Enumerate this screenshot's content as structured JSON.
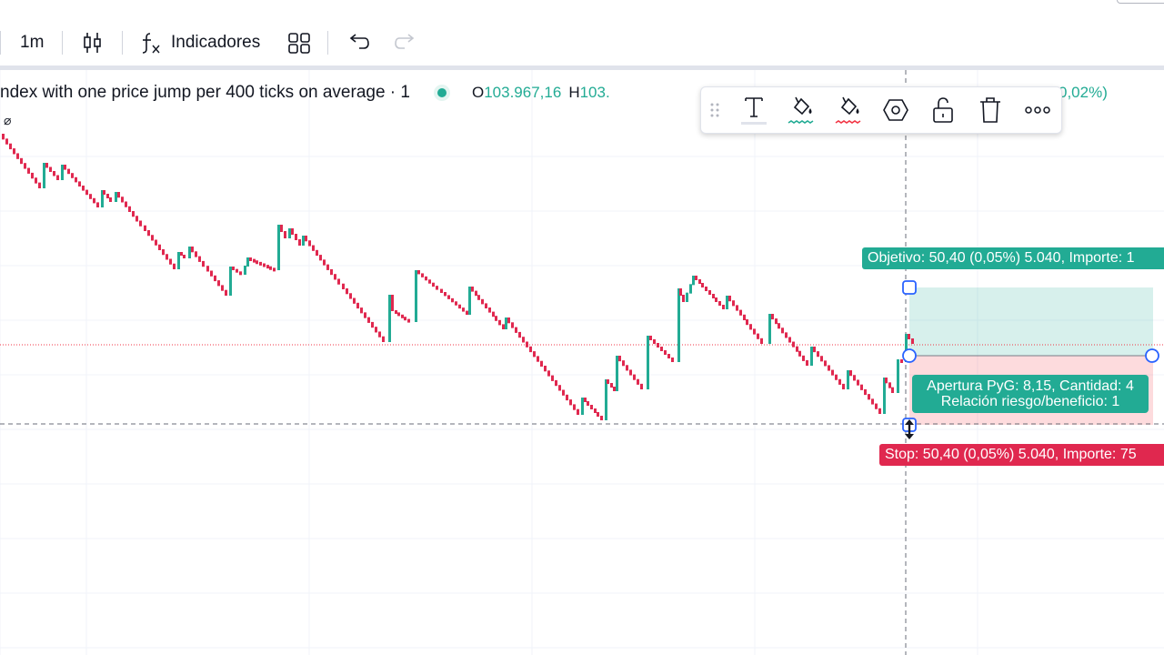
{
  "toolbar": {
    "interval": "1m",
    "indicators_label": "Indicadores",
    "icons": [
      "candles-icon",
      "fx-icon",
      "layouts-icon",
      "undo-icon",
      "redo-icon"
    ]
  },
  "legend": {
    "title": "ndex with one price jump per 400 ticks on average · 1",
    "open_label": "O",
    "open_value": "103.967,16",
    "high_label": "H",
    "high_value": "103.",
    "change": "0,02%)",
    "status_color": "#22ab94"
  },
  "floating_toolbar": {
    "icons": [
      "drag-handle-icon",
      "text-icon",
      "fill-profit-icon",
      "fill-loss-icon",
      "settings-hexagon-icon",
      "lock-icon",
      "trash-icon",
      "more-icon"
    ]
  },
  "position": {
    "target_label": "Objetivo: 50,40 (0,05%) 5.040, Importe: 1",
    "stop_label": "Stop: 50,40 (0,05%) 5.040, Importe: 75",
    "info_line1": "Apertura PyG: 8,15, Cantidad: 4",
    "info_line2": "Relación riesgo/beneficio: 1",
    "profit_color": "#22ab94",
    "loss_color": "#f23645"
  },
  "colors": {
    "up": "#22ab94",
    "down": "#e0284f",
    "grid": "#f0f3fa"
  },
  "symbol_mark": "⌀"
}
